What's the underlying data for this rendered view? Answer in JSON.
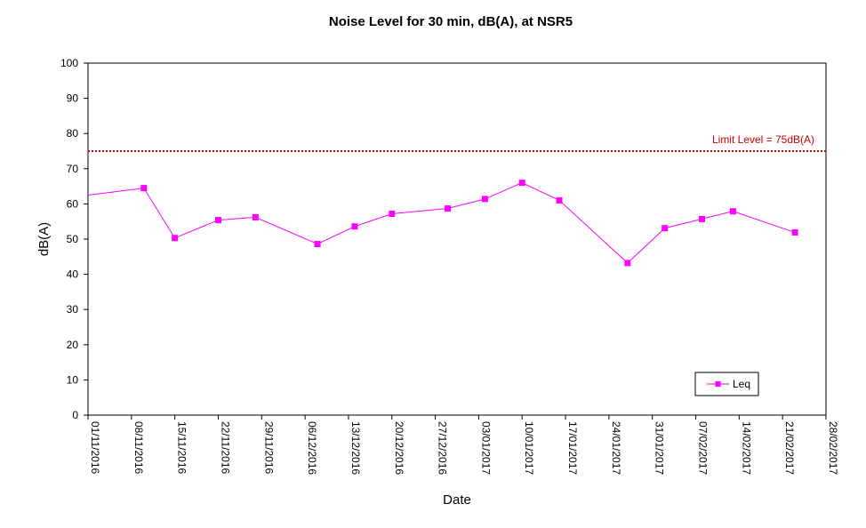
{
  "chart_data": {
    "type": "line",
    "title": "Noise Level for 30 min, dB(A), at NSR5",
    "xlabel": "Date",
    "ylabel": "dB(A)",
    "ylim": [
      0,
      100
    ],
    "yticks": [
      0,
      10,
      20,
      30,
      40,
      50,
      60,
      70,
      80,
      90,
      100
    ],
    "xlim": [
      "01/11/2016",
      "28/02/2017"
    ],
    "xticks": [
      "01/11/2016",
      "08/11/2016",
      "15/11/2016",
      "22/11/2016",
      "29/11/2016",
      "06/12/2016",
      "13/12/2016",
      "20/12/2016",
      "27/12/2016",
      "03/01/2017",
      "10/01/2017",
      "17/01/2017",
      "24/01/2017",
      "31/01/2017",
      "07/02/2017",
      "14/02/2017",
      "21/02/2017",
      "28/02/2017"
    ],
    "grid": false,
    "legend_position": "bottom-right",
    "series": [
      {
        "name": "Leq",
        "color": "#ff00ff",
        "marker": "square",
        "points": [
          {
            "x": "01/11/2016",
            "y": 62.5,
            "marker": false
          },
          {
            "x": "10/11/2016",
            "y": 64.5
          },
          {
            "x": "15/11/2016",
            "y": 50.3
          },
          {
            "x": "22/11/2016",
            "y": 55.4
          },
          {
            "x": "28/11/2016",
            "y": 56.2
          },
          {
            "x": "08/12/2016",
            "y": 48.6
          },
          {
            "x": "14/12/2016",
            "y": 53.6
          },
          {
            "x": "20/12/2016",
            "y": 57.2
          },
          {
            "x": "29/12/2016",
            "y": 58.7
          },
          {
            "x": "04/01/2017",
            "y": 61.4
          },
          {
            "x": "10/01/2017",
            "y": 66.0
          },
          {
            "x": "16/01/2017",
            "y": 61.0
          },
          {
            "x": "27/01/2017",
            "y": 43.2
          },
          {
            "x": "02/02/2017",
            "y": 53.1
          },
          {
            "x": "08/02/2017",
            "y": 55.7
          },
          {
            "x": "13/02/2017",
            "y": 57.9
          },
          {
            "x": "23/02/2017",
            "y": 51.9
          }
        ]
      }
    ],
    "limit_line": {
      "value": 75,
      "label": "Limit Level = 75dB(A)",
      "color": "#cc0000",
      "style": "dotted"
    }
  }
}
